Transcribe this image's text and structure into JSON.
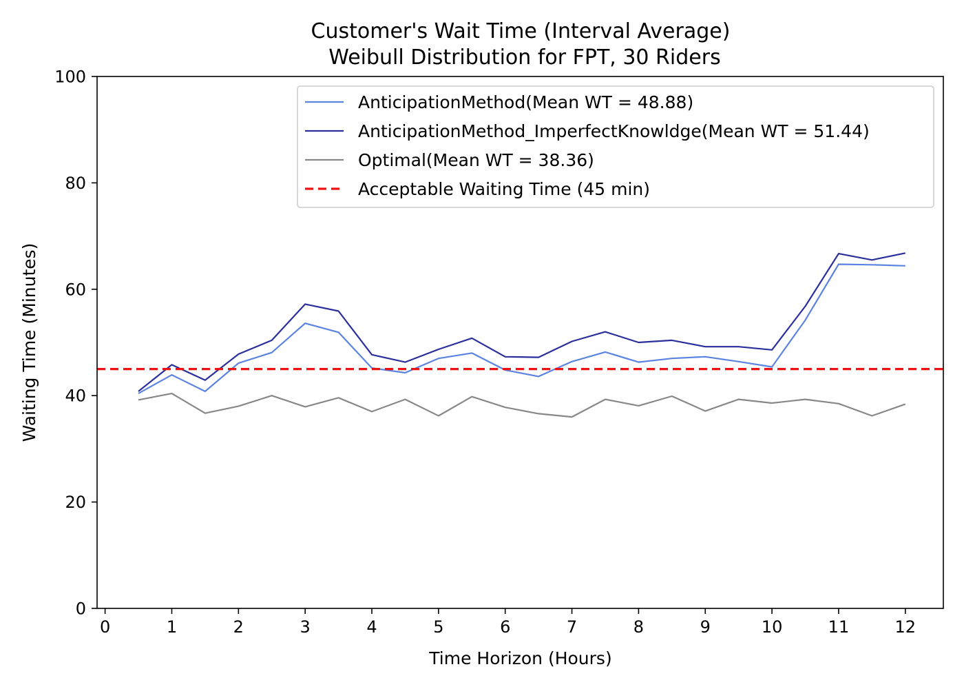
{
  "chart_data": {
    "type": "line",
    "title": "Customer's Wait Time (Interval Average)",
    "subtitle": "Weibull Distribution for FPT, 30 Riders",
    "xlabel": "Time Horizon (Hours)",
    "ylabel": "Waiting Time (Minutes)",
    "xlim": [
      -0.12,
      12.57
    ],
    "ylim": [
      0,
      100
    ],
    "xticks": [
      0,
      1,
      2,
      3,
      4,
      5,
      6,
      7,
      8,
      9,
      10,
      11,
      12
    ],
    "yticks": [
      0,
      20,
      40,
      60,
      80,
      100
    ],
    "grid": false,
    "legend_position": "top-right",
    "x": [
      0.5,
      1,
      1.5,
      2,
      2.5,
      3,
      3.5,
      4,
      4.5,
      5,
      5.5,
      6,
      6.5,
      7,
      7.5,
      8,
      8.5,
      9,
      9.5,
      10,
      10.5,
      11,
      11.5,
      12
    ],
    "series": [
      {
        "name": "AnticipationMethod(Mean WT = 48.88)",
        "color": "#5b84e0",
        "style": "solid",
        "values": [
          40.4,
          43.9,
          40.8,
          46.1,
          48.1,
          53.6,
          51.9,
          45.2,
          44.3,
          47.0,
          48.0,
          44.8,
          43.6,
          46.4,
          48.2,
          46.3,
          47.0,
          47.3,
          46.4,
          45.4,
          54.2,
          64.7,
          64.6,
          64.4
        ]
      },
      {
        "name": "AnticipationMethod_ImperfectKnowldge(Mean WT = 51.44)",
        "color": "#2a2f9c",
        "style": "solid",
        "values": [
          40.8,
          45.8,
          42.9,
          47.8,
          50.4,
          57.2,
          55.9,
          47.7,
          46.3,
          48.7,
          50.8,
          47.3,
          47.2,
          50.2,
          52.0,
          50.0,
          50.4,
          49.2,
          49.2,
          48.6,
          56.8,
          66.7,
          65.5,
          66.8
        ]
      },
      {
        "name": "Optimal(Mean WT = 38.36)",
        "color": "#888888",
        "style": "solid",
        "values": [
          39.2,
          40.4,
          36.7,
          38.0,
          40.0,
          37.9,
          39.6,
          37.0,
          39.3,
          36.2,
          39.8,
          37.8,
          36.6,
          36.0,
          39.3,
          38.1,
          39.9,
          37.1,
          39.3,
          38.6,
          39.3,
          38.5,
          36.2,
          38.4
        ]
      }
    ],
    "reference_line": {
      "name": "Acceptable Waiting Time (45 min)",
      "y": 45,
      "color": "#ee1111",
      "style": "dashed"
    }
  }
}
